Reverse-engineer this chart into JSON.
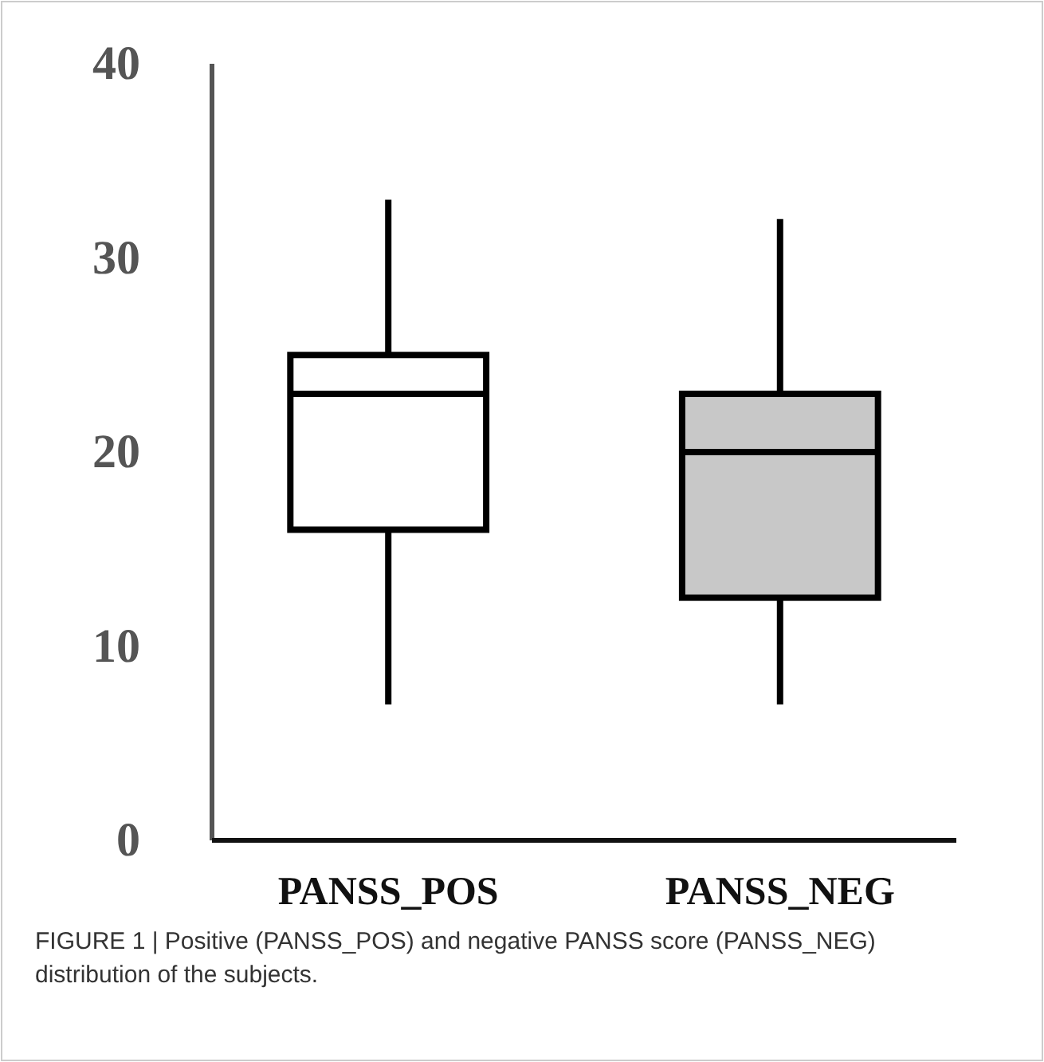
{
  "chart_data": {
    "type": "box",
    "categories": [
      "PANSS_POS",
      "PANSS_NEG"
    ],
    "boxes": [
      {
        "low": 7,
        "q1": 16,
        "median": 23,
        "q3": 25,
        "high": 33
      },
      {
        "low": 7,
        "q1": 12.5,
        "median": 20,
        "q3": 23,
        "high": 32
      }
    ],
    "colors": [
      "#ffffff",
      "#c8c8c8"
    ],
    "ylim": [
      0,
      40
    ],
    "yticks": [
      0,
      10,
      20,
      30,
      40
    ],
    "grid": false,
    "annotations": [
      "FIGURE 1 | Positive (PANSS_POS) and negative PANSS score (PANSS_NEG) distribution of the subjects."
    ]
  }
}
